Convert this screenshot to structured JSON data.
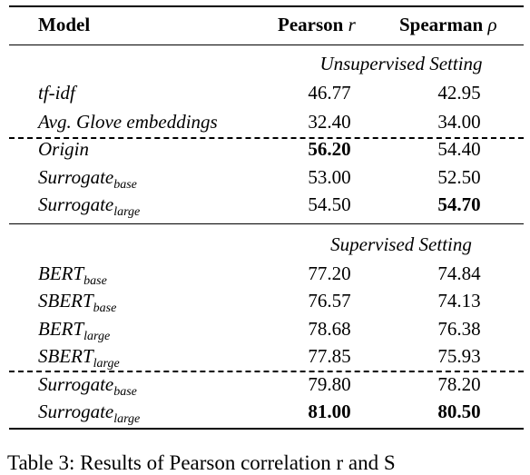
{
  "header": {
    "model": "Model",
    "pearson_label": "Pearson",
    "pearson_symbol": "r",
    "spearman_label": "Spearman",
    "spearman_symbol": "ρ"
  },
  "sections": {
    "unsupervised": "Unsupervised Setting",
    "supervised": "Supervised Setting"
  },
  "unsupervised_rows": [
    {
      "model": "tf-idf",
      "sub": "",
      "pearson": "46.77",
      "spearman": "42.95"
    },
    {
      "model": "Avg. Glove embeddings",
      "sub": "",
      "pearson": "32.40",
      "spearman": "34.00"
    },
    {
      "model": "Origin",
      "sub": "",
      "pearson": "56.20",
      "spearman": "54.40"
    },
    {
      "model": "Surrogate",
      "sub": "base",
      "pearson": "53.00",
      "spearman": "52.50"
    },
    {
      "model": "Surrogate",
      "sub": "large",
      "pearson": "54.50",
      "spearman": "54.70"
    }
  ],
  "supervised_rows": [
    {
      "model": "BERT",
      "sub": "base",
      "pearson": "77.20",
      "spearman": "74.84"
    },
    {
      "model": "SBERT",
      "sub": "base",
      "pearson": "76.57",
      "spearman": "74.13"
    },
    {
      "model": "BERT",
      "sub": "large",
      "pearson": "78.68",
      "spearman": "76.38"
    },
    {
      "model": "SBERT",
      "sub": "large",
      "pearson": "77.85",
      "spearman": "75.93"
    },
    {
      "model": "Surrogate",
      "sub": "base",
      "pearson": "79.80",
      "spearman": "78.20"
    },
    {
      "model": "Surrogate",
      "sub": "large",
      "pearson": "81.00",
      "spearman": "80.50"
    }
  ],
  "caption": "Table 3: Results of Pearson correlation r and S"
}
